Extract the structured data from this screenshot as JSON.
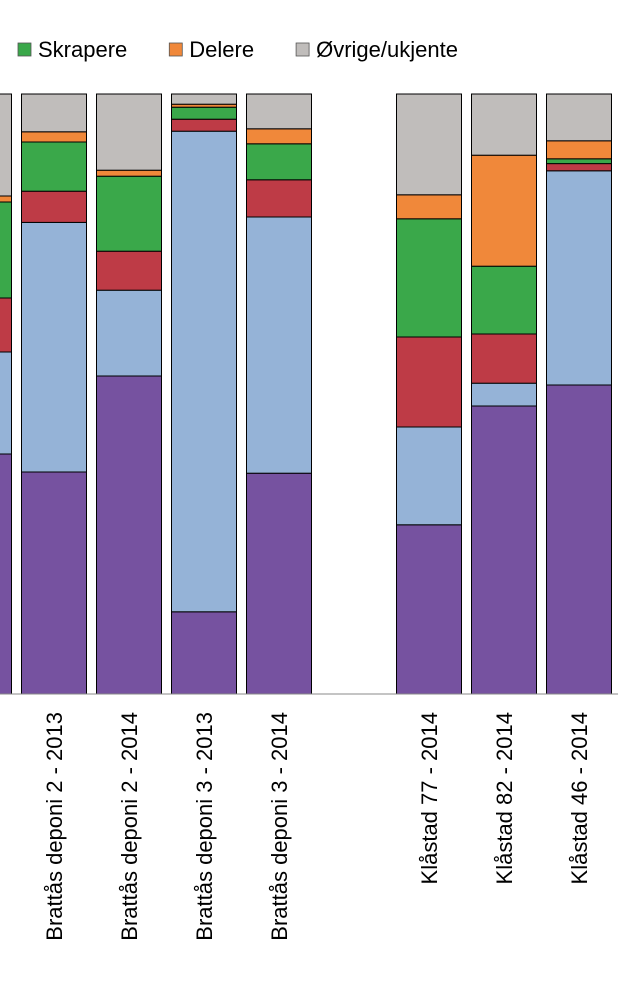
{
  "chart_data": {
    "type": "stacked-bar",
    "categories": [
      null,
      "Brattås deponi 2 - 2013",
      "Brattås deponi 2 - 2014",
      "Brattås deponi 3 - 2013",
      "Brattås deponi 3 - 2014",
      null,
      "Klåstad 77 - 2014",
      "Klåstad 82 - 2014",
      "Klåstad 46 - 2014"
    ],
    "series": [
      {
        "color": "#7652a0",
        "values": [
          40,
          37,
          53,
          13.7,
          36.8,
          null,
          28.2,
          48,
          51.5
        ]
      },
      {
        "color": "#95b3d7",
        "values": [
          17,
          41.6,
          14.3,
          80.1,
          42.7,
          null,
          16.3,
          3.8,
          35.7
        ]
      },
      {
        "color": "#be3b46",
        "values": [
          9,
          5.2,
          6.5,
          2,
          6.2,
          null,
          15,
          8.2,
          1.2
        ]
      },
      {
        "name": "Skrapere",
        "color": "#3aa84a",
        "values": [
          16,
          8.2,
          12.5,
          2,
          6,
          null,
          19.7,
          11.3,
          0.8
        ]
      },
      {
        "name": "Delere",
        "color": "#f0883a",
        "values": [
          1,
          1.7,
          1,
          0.5,
          2.5,
          null,
          4,
          18.5,
          3
        ]
      },
      {
        "name": "Øvrige/ukjente",
        "color": "#c0bdbb",
        "values": [
          17,
          6.3,
          12.7,
          1.7,
          5.8,
          null,
          16.8,
          10.2,
          7.8
        ]
      }
    ],
    "ylim": [
      0,
      100
    ]
  }
}
